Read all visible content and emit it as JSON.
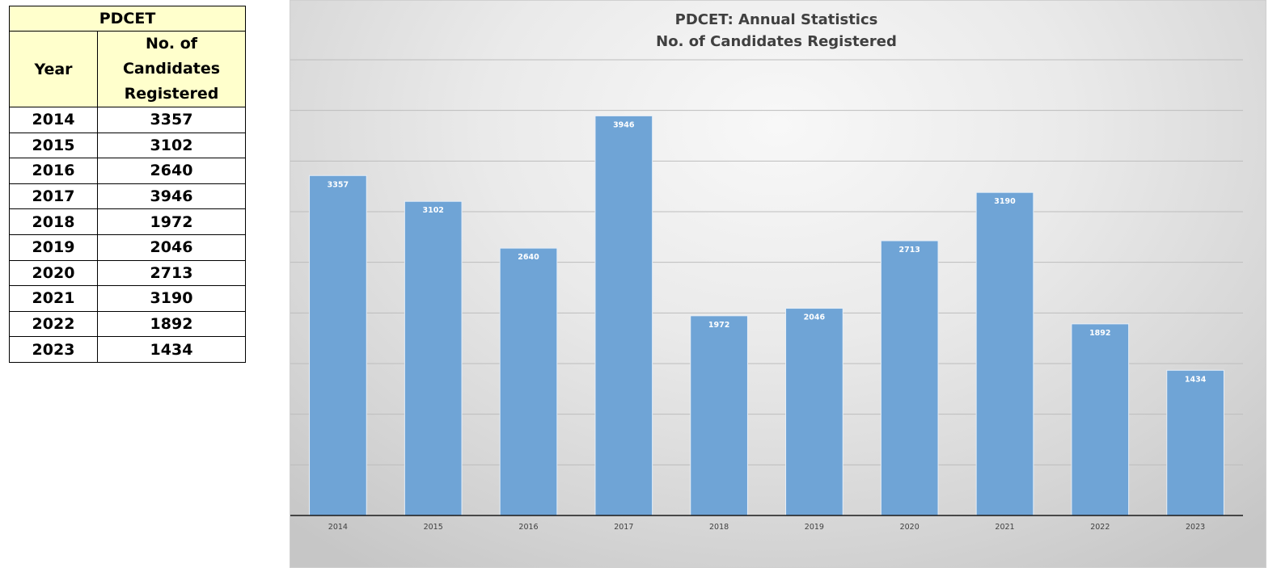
{
  "table": {
    "title": "PDCET",
    "col_year": "Year",
    "col_count_lines": [
      "No. of",
      "Candidates",
      "Registered"
    ],
    "rows": [
      {
        "year": "2014",
        "count": "3357"
      },
      {
        "year": "2015",
        "count": "3102"
      },
      {
        "year": "2016",
        "count": "2640"
      },
      {
        "year": "2017",
        "count": "3946"
      },
      {
        "year": "2018",
        "count": "1972"
      },
      {
        "year": "2019",
        "count": "2046"
      },
      {
        "year": "2020",
        "count": "2713"
      },
      {
        "year": "2021",
        "count": "3190"
      },
      {
        "year": "2022",
        "count": "1892"
      },
      {
        "year": "2023",
        "count": "1434"
      }
    ]
  },
  "chart_data": {
    "type": "bar",
    "title_lines": [
      "PDCET: Annual Statistics",
      "No. of Candidates Registered"
    ],
    "categories": [
      "2014",
      "2015",
      "2016",
      "2017",
      "2018",
      "2019",
      "2020",
      "2021",
      "2022",
      "2023"
    ],
    "values": [
      3357,
      3102,
      2640,
      3946,
      1972,
      2046,
      2713,
      3190,
      1892,
      1434
    ],
    "xlabel": "",
    "ylabel": "",
    "ylim": [
      0,
      4500
    ],
    "gridlines": [
      500,
      1000,
      1500,
      2000,
      2500,
      3000,
      3500,
      4000,
      4500
    ],
    "grid": true,
    "legend": false,
    "bar_color": "#6fa4d6",
    "axis_color": "#1a1a1a",
    "grid_color": "#bdbdbd"
  }
}
